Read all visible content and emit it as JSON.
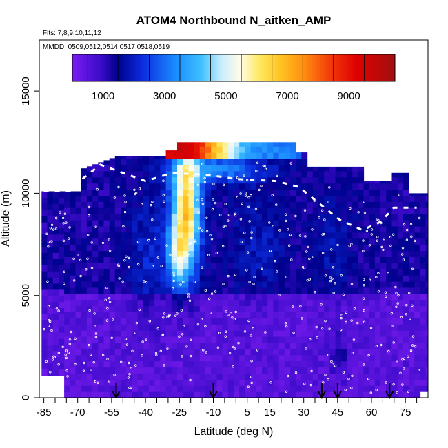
{
  "chart_data": {
    "type": "heatmap",
    "title": "ATOM4 Northbound N_aitken_AMP",
    "subtitle_flights": "Flts: 7,8,9,10,11,12",
    "subtitle_dates": "MMDD: 0509,0512,0514,0517,0518,0519",
    "xlabel": "Latitude (deg N)",
    "ylabel": "Altitude (m)",
    "xlim": [
      -87,
      85
    ],
    "ylim": [
      0,
      17500
    ],
    "x_ticks": [
      -85,
      -70,
      -55,
      -40,
      -25,
      -10,
      5,
      15,
      30,
      45,
      60,
      75
    ],
    "x_tick_labels": [
      "-85",
      "-70",
      "-55",
      "-40",
      "-25",
      "-10",
      "5",
      "15",
      "30",
      "45",
      "60",
      "75"
    ],
    "y_ticks": [
      0,
      5000,
      10000,
      15000
    ],
    "y_tick_labels": [
      "0",
      "5000",
      "10000",
      "15000"
    ],
    "colorbar": {
      "range": [
        0,
        10500
      ],
      "tick_values": [
        1000,
        3000,
        5000,
        7000,
        9000
      ],
      "tick_labels": [
        "1000",
        "3000",
        "5000",
        "7000",
        "9000"
      ]
    },
    "arrows_latitude": [
      -53,
      -10,
      38,
      45,
      68
    ],
    "grid": false,
    "legend": "colorbar top, inside plot"
  }
}
